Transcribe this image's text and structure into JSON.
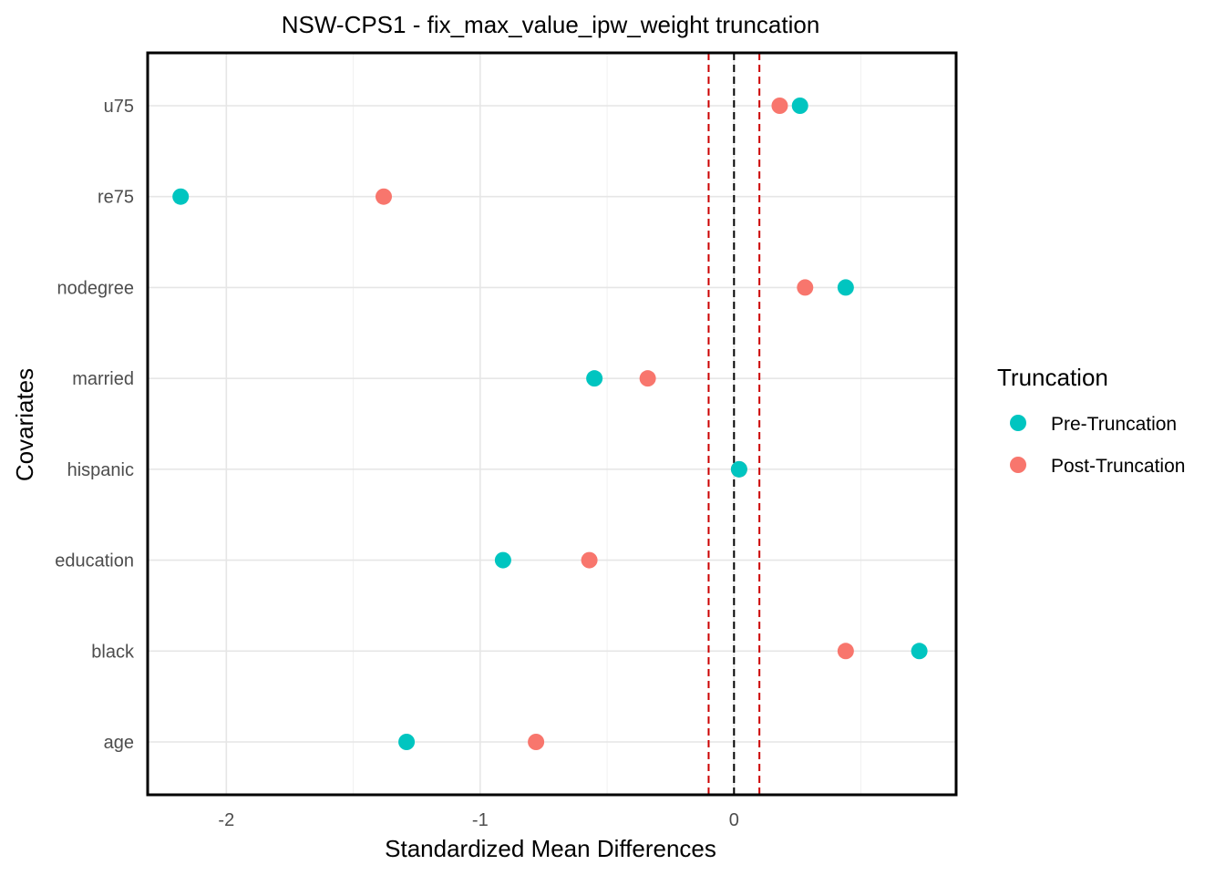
{
  "chart_data": {
    "type": "scatter",
    "title": "NSW-CPS1 - fix_max_value_ipw_weight truncation",
    "xlabel": "Standardized Mean Differences",
    "ylabel": "Covariates",
    "xlim": [
      -2.31,
      0.875
    ],
    "x_ticks": [
      "-2",
      "-1",
      "0"
    ],
    "x_tick_values": [
      -2,
      -1,
      0
    ],
    "grid": true,
    "categories": [
      "age",
      "black",
      "education",
      "hispanic",
      "married",
      "nodegree",
      "re75",
      "u75"
    ],
    "series": [
      {
        "name": "Pre-Truncation",
        "color": "#00C5C0",
        "values": [
          -1.29,
          0.73,
          -0.91,
          0.02,
          -0.55,
          0.44,
          -2.18,
          0.26
        ]
      },
      {
        "name": "Post-Truncation",
        "color": "#F8766D",
        "values": [
          -0.78,
          0.44,
          -0.57,
          0.02,
          -0.34,
          0.28,
          -1.38,
          0.18
        ]
      }
    ],
    "reference_lines": [
      {
        "x": 0,
        "color": "#000000",
        "style": "dashed"
      },
      {
        "x": -0.1,
        "color": "#CC0000",
        "style": "dashed"
      },
      {
        "x": 0.1,
        "color": "#CC0000",
        "style": "dashed"
      }
    ],
    "legend": {
      "title": "Truncation",
      "position": "right",
      "entries": [
        "Pre-Truncation",
        "Post-Truncation"
      ]
    }
  }
}
